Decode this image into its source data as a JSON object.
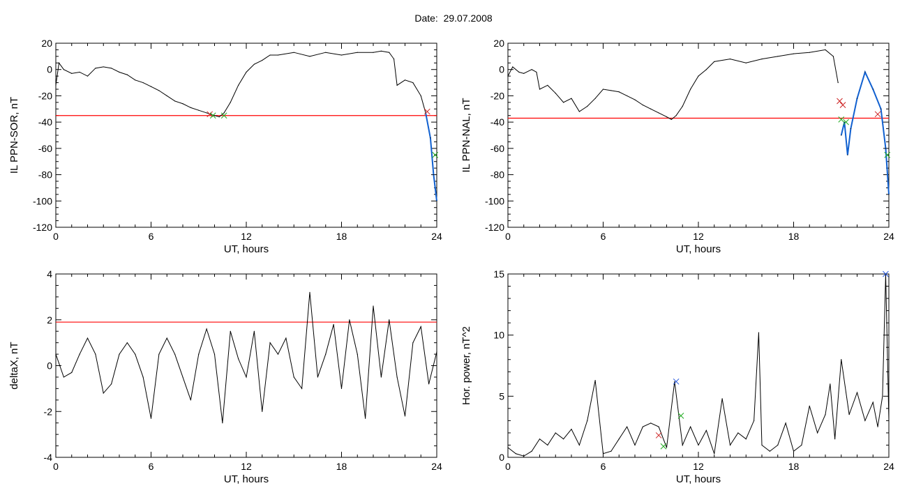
{
  "title": "Date:  29.07.2008",
  "colors": {
    "line": "#000000",
    "threshold": "#ff0000",
    "blue_segment": "#1060d0",
    "marker_red": "#cc2222",
    "marker_green": "#22aa22",
    "marker_blue": "#2255dd"
  },
  "chart_data": [
    {
      "type": "line",
      "xlabel": "UT, hours",
      "ylabel": "IL PPN-SOR, nT",
      "xlim": [
        0,
        24
      ],
      "ylim": [
        -120,
        20
      ],
      "xticks": [
        0,
        6,
        12,
        18,
        24
      ],
      "yticks": [
        20,
        0,
        -20,
        -40,
        -60,
        -80,
        -100,
        -120
      ],
      "threshold": -35,
      "x": [
        0.0,
        0.2,
        0.5,
        1.0,
        1.5,
        2.0,
        2.5,
        3.0,
        3.5,
        4.0,
        4.5,
        5.0,
        5.5,
        6.0,
        6.5,
        7.0,
        7.5,
        8.0,
        8.5,
        9.0,
        9.5,
        10.0,
        10.3,
        10.6,
        11.0,
        11.5,
        12.0,
        12.5,
        13.0,
        13.5,
        14.0,
        15.0,
        16.0,
        17.0,
        18.0,
        19.0,
        20.0,
        20.5,
        21.0,
        21.3,
        21.5,
        22.0,
        22.5,
        23.0,
        23.3,
        23.6,
        23.8,
        24.0
      ],
      "y": [
        -12,
        5,
        0,
        -3,
        -2,
        -5,
        1,
        2,
        1,
        -2,
        -4,
        -8,
        -10,
        -13,
        -16,
        -20,
        -24,
        -26,
        -29,
        -31,
        -33,
        -35,
        -36,
        -33,
        -25,
        -12,
        -2,
        4,
        7,
        11,
        11,
        13,
        10,
        13,
        11,
        13,
        13,
        14,
        13,
        8,
        -12,
        -8,
        -10,
        -20,
        -33,
        -52,
        -80,
        -100
      ],
      "highlight_from_x": 23.3,
      "markers": [
        {
          "x": 9.7,
          "y": -34,
          "color": "red"
        },
        {
          "x": 9.9,
          "y": -35,
          "color": "green"
        },
        {
          "x": 10.6,
          "y": -35,
          "color": "green"
        },
        {
          "x": 23.4,
          "y": -32,
          "color": "red"
        },
        {
          "x": 23.9,
          "y": -65,
          "color": "green"
        }
      ]
    },
    {
      "type": "line",
      "xlabel": "UT, hours",
      "ylabel": "IL PPN-NAL, nT",
      "xlim": [
        0,
        24
      ],
      "ylim": [
        -120,
        20
      ],
      "xticks": [
        0,
        6,
        12,
        18,
        24
      ],
      "yticks": [
        20,
        0,
        -20,
        -40,
        -60,
        -80,
        -100,
        -120
      ],
      "threshold": -37,
      "x": [
        0.0,
        0.3,
        0.7,
        1.0,
        1.5,
        1.8,
        2.0,
        2.5,
        3.0,
        3.5,
        4.0,
        4.5,
        5.0,
        5.5,
        6.0,
        6.5,
        7.0,
        7.5,
        8.0,
        8.5,
        9.0,
        9.5,
        10.0,
        10.3,
        10.6,
        11.0,
        11.5,
        12.0,
        12.5,
        13.0,
        14.0,
        15.0,
        16.0,
        17.0,
        18.0,
        19.0,
        20.0,
        20.5,
        20.8,
        21.0,
        21.2,
        21.4,
        21.6,
        22.0,
        22.5,
        23.0,
        23.5,
        23.8,
        24.0
      ],
      "y": [
        -5,
        2,
        -2,
        -3,
        0,
        -2,
        -15,
        -12,
        -18,
        -25,
        -22,
        -32,
        -28,
        -22,
        -15,
        -16,
        -17,
        -20,
        -23,
        -27,
        -30,
        -33,
        -36,
        -38,
        -35,
        -28,
        -15,
        -5,
        0,
        6,
        8,
        5,
        8,
        10,
        12,
        13,
        15,
        10,
        -10,
        -50,
        -40,
        -65,
        -45,
        -22,
        -2,
        -15,
        -30,
        -60,
        -95
      ],
      "highlight_from_x": 20.9,
      "markers": [
        {
          "x": 20.9,
          "y": -24,
          "color": "red"
        },
        {
          "x": 21.0,
          "y": -38,
          "color": "green"
        },
        {
          "x": 21.1,
          "y": -27,
          "color": "red"
        },
        {
          "x": 21.3,
          "y": -40,
          "color": "green"
        },
        {
          "x": 23.3,
          "y": -34,
          "color": "red"
        },
        {
          "x": 23.9,
          "y": -65,
          "color": "green"
        }
      ]
    },
    {
      "type": "line",
      "xlabel": "UT, hours",
      "ylabel": "deltaX, nT",
      "xlim": [
        0,
        24
      ],
      "ylim": [
        -4,
        4
      ],
      "xticks": [
        0,
        6,
        12,
        18,
        24
      ],
      "yticks": [
        4,
        2,
        0,
        -2,
        -4
      ],
      "threshold": 1.9,
      "x": [
        0.0,
        0.5,
        1.0,
        1.5,
        2.0,
        2.5,
        3.0,
        3.5,
        4.0,
        4.5,
        5.0,
        5.5,
        6.0,
        6.5,
        7.0,
        7.5,
        8.0,
        8.5,
        9.0,
        9.5,
        10.0,
        10.5,
        11.0,
        11.5,
        12.0,
        12.5,
        13.0,
        13.5,
        14.0,
        14.5,
        15.0,
        15.5,
        16.0,
        16.5,
        17.0,
        17.5,
        18.0,
        18.5,
        19.0,
        19.5,
        20.0,
        20.5,
        21.0,
        21.5,
        22.0,
        22.5,
        23.0,
        23.5,
        24.0
      ],
      "y": [
        0.5,
        -0.5,
        -0.3,
        0.5,
        1.2,
        0.5,
        -1.2,
        -0.8,
        0.5,
        1.0,
        0.5,
        -0.5,
        -2.3,
        0.5,
        1.2,
        0.5,
        -0.5,
        -1.5,
        0.5,
        1.6,
        0.5,
        -2.5,
        1.5,
        0.3,
        -0.5,
        1.5,
        -2.0,
        1.0,
        0.5,
        1.2,
        -0.5,
        -1.0,
        3.2,
        -0.5,
        0.5,
        1.8,
        -1.0,
        2.0,
        0.5,
        -2.3,
        2.6,
        -0.5,
        2.0,
        -0.5,
        -2.2,
        1.0,
        1.7,
        -0.8,
        0.6
      ],
      "markers": []
    },
    {
      "type": "line",
      "xlabel": "UT, hours",
      "ylabel": "Hor. power, nT^2",
      "xlim": [
        0,
        24
      ],
      "ylim": [
        0,
        15
      ],
      "xticks": [
        0,
        6,
        12,
        18,
        24
      ],
      "yticks": [
        15,
        10,
        5,
        0
      ],
      "x": [
        0.0,
        0.5,
        1.0,
        1.5,
        2.0,
        2.5,
        3.0,
        3.5,
        4.0,
        4.5,
        5.0,
        5.5,
        6.0,
        6.5,
        7.0,
        7.5,
        8.0,
        8.5,
        9.0,
        9.5,
        10.0,
        10.5,
        11.0,
        11.5,
        12.0,
        12.5,
        13.0,
        13.5,
        14.0,
        14.5,
        15.0,
        15.5,
        15.8,
        16.0,
        16.5,
        17.0,
        17.5,
        18.0,
        18.5,
        19.0,
        19.5,
        20.0,
        20.3,
        20.6,
        21.0,
        21.5,
        22.0,
        22.5,
        23.0,
        23.3,
        23.6,
        23.8,
        24.0
      ],
      "y": [
        0.8,
        0.3,
        0.1,
        0.5,
        1.5,
        1.0,
        2.0,
        1.5,
        2.3,
        1.0,
        3.0,
        6.3,
        0.3,
        0.5,
        1.5,
        2.5,
        1.0,
        2.5,
        2.8,
        2.5,
        0.8,
        6.2,
        1.0,
        2.5,
        1.0,
        2.2,
        0.3,
        4.8,
        1.0,
        2.0,
        1.5,
        3.0,
        10.2,
        1.0,
        0.5,
        1.0,
        2.8,
        0.5,
        1.0,
        4.2,
        2.0,
        3.5,
        6.0,
        1.5,
        8.0,
        3.5,
        5.3,
        3.0,
        4.5,
        2.5,
        5.0,
        15.0,
        3.0
      ],
      "markers": [
        {
          "x": 9.5,
          "y": 1.8,
          "color": "red"
        },
        {
          "x": 9.8,
          "y": 0.9,
          "color": "green"
        },
        {
          "x": 10.6,
          "y": 6.2,
          "color": "blue"
        },
        {
          "x": 10.9,
          "y": 3.4,
          "color": "green"
        },
        {
          "x": 23.8,
          "y": 15.0,
          "color": "blue"
        }
      ]
    }
  ]
}
